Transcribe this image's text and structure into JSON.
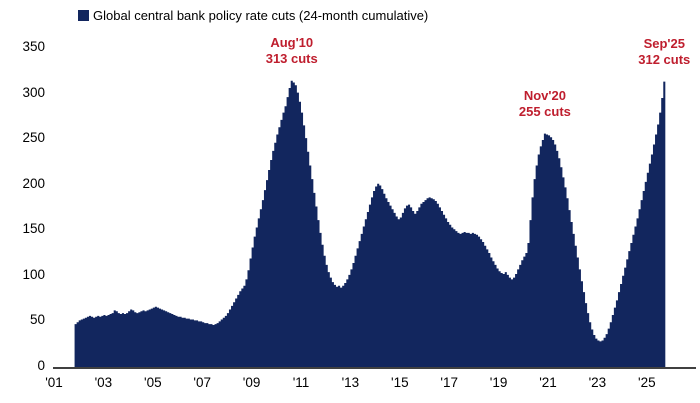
{
  "legend": {
    "label": "Global central bank policy rate cuts (24-month cumulative)"
  },
  "colors": {
    "series_fill": "#12265e",
    "annotation_red": "#bf1e2e",
    "axis_line": "#404040",
    "tick_text": "#000000"
  },
  "annotations": [
    {
      "month": "2010-08",
      "line1": "Aug'10",
      "line2": "313 cuts",
      "value": 313
    },
    {
      "month": "2020-11",
      "line1": "Nov'20",
      "line2": "255 cuts",
      "value": 255
    },
    {
      "month": "2025-09",
      "line1": "Sep'25",
      "line2": "312 cuts",
      "value": 312
    }
  ],
  "chart_data": {
    "type": "area",
    "title": "",
    "series_name": "Global central bank policy rate cuts (24-month cumulative)",
    "frequency": "monthly",
    "start_month": "2001-11",
    "end_month": "2025-09",
    "ylim": [
      0,
      350
    ],
    "y_ticks": [
      0,
      50,
      100,
      150,
      200,
      250,
      300,
      350
    ],
    "x_tick_labels": [
      "'01",
      "'03",
      "'05",
      "'07",
      "'09",
      "'11",
      "'13",
      "'15",
      "'17",
      "'19",
      "'21",
      "'23",
      "'25"
    ],
    "x_tick_years": [
      2001,
      2003,
      2005,
      2007,
      2009,
      2011,
      2013,
      2015,
      2017,
      2019,
      2021,
      2023,
      2025
    ],
    "grid": false,
    "legend_position": "top",
    "annotated_points": [
      {
        "label": "Aug'10",
        "value": 313
      },
      {
        "label": "Nov'20",
        "value": 255
      },
      {
        "label": "Sep'25",
        "value": 312
      }
    ],
    "values": [
      46,
      48,
      50,
      51,
      52,
      53,
      54,
      55,
      54,
      53,
      54,
      55,
      54,
      55,
      56,
      55,
      56,
      57,
      58,
      61,
      60,
      58,
      57,
      58,
      57,
      58,
      60,
      62,
      61,
      59,
      58,
      59,
      60,
      61,
      60,
      61,
      62,
      63,
      64,
      65,
      64,
      63,
      62,
      61,
      60,
      59,
      58,
      57,
      56,
      55,
      54,
      54,
      53,
      53,
      52,
      52,
      51,
      51,
      50,
      50,
      49,
      49,
      48,
      47,
      47,
      46,
      46,
      45,
      46,
      47,
      49,
      51,
      53,
      55,
      58,
      62,
      66,
      70,
      74,
      78,
      82,
      85,
      88,
      95,
      105,
      118,
      130,
      142,
      152,
      162,
      172,
      182,
      193,
      204,
      215,
      226,
      236,
      245,
      254,
      262,
      270,
      278,
      285,
      295,
      305,
      313,
      311,
      308,
      300,
      290,
      278,
      264,
      250,
      235,
      220,
      205,
      190,
      175,
      160,
      146,
      133,
      121,
      111,
      103,
      97,
      92,
      89,
      87,
      88,
      86,
      88,
      91,
      95,
      100,
      106,
      113,
      121,
      129,
      137,
      145,
      153,
      161,
      169,
      177,
      185,
      192,
      197,
      200,
      198,
      194,
      189,
      184,
      180,
      176,
      172,
      168,
      164,
      161,
      163,
      168,
      173,
      176,
      177,
      174,
      170,
      167,
      170,
      174,
      178,
      180,
      182,
      184,
      185,
      184,
      183,
      181,
      178,
      174,
      170,
      166,
      162,
      158,
      155,
      152,
      150,
      148,
      146,
      145,
      146,
      147,
      146,
      146,
      145,
      146,
      145,
      144,
      142,
      139,
      136,
      132,
      128,
      124,
      119,
      115,
      111,
      107,
      104,
      102,
      101,
      103,
      100,
      97,
      95,
      97,
      101,
      106,
      111,
      116,
      120,
      124,
      135,
      160,
      185,
      205,
      220,
      232,
      241,
      248,
      255,
      254,
      253,
      251,
      248,
      243,
      236,
      228,
      218,
      207,
      196,
      184,
      171,
      158,
      145,
      132,
      119,
      106,
      93,
      81,
      69,
      58,
      48,
      40,
      34,
      30,
      28,
      27,
      28,
      31,
      35,
      41,
      48,
      56,
      64,
      72,
      81,
      90,
      99,
      108,
      117,
      126,
      135,
      144,
      153,
      162,
      172,
      182,
      192,
      202,
      212,
      222,
      232,
      243,
      254,
      265,
      278,
      294,
      312
    ]
  }
}
